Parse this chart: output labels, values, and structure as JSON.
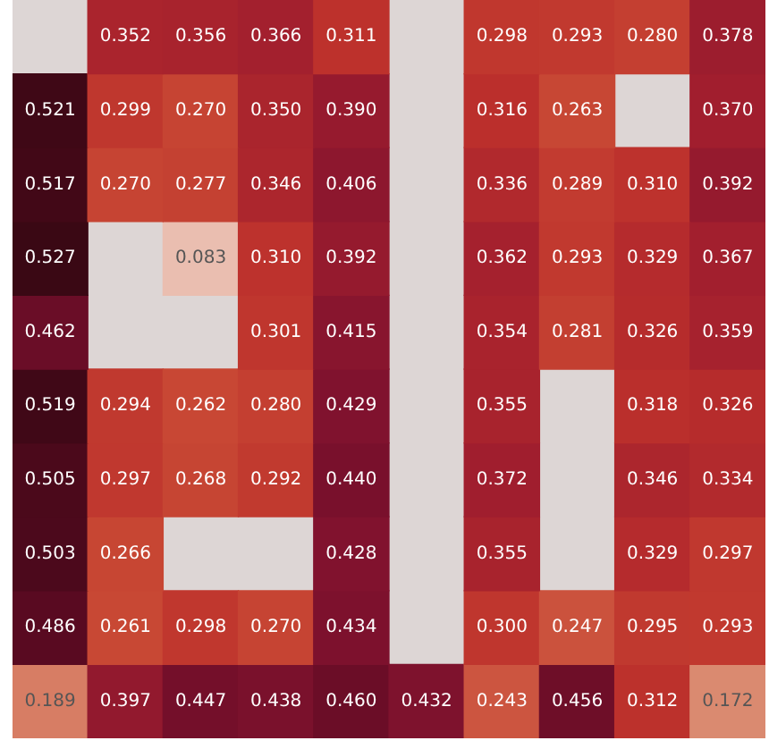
{
  "chart_data": {
    "type": "heatmap",
    "categories": [
      null,
      null,
      null,
      null,
      null,
      null,
      null,
      null,
      null,
      null
    ],
    "y_categories": [
      null,
      null,
      null,
      null,
      null,
      null,
      null,
      null,
      null,
      null
    ],
    "cells": [
      [
        null,
        0.352,
        0.356,
        0.366,
        0.311,
        null,
        0.298,
        0.293,
        0.28,
        0.378
      ],
      [
        0.521,
        0.299,
        0.27,
        0.35,
        0.39,
        null,
        0.316,
        0.263,
        null,
        0.37
      ],
      [
        0.517,
        0.27,
        0.277,
        0.346,
        0.406,
        null,
        0.336,
        0.289,
        0.31,
        0.392
      ],
      [
        0.527,
        null,
        0.083,
        0.31,
        0.392,
        null,
        0.362,
        0.293,
        0.329,
        0.367
      ],
      [
        0.462,
        null,
        null,
        0.301,
        0.415,
        null,
        0.354,
        0.281,
        0.326,
        0.359
      ],
      [
        0.519,
        0.294,
        0.262,
        0.28,
        0.429,
        null,
        0.355,
        null,
        0.318,
        0.326
      ],
      [
        0.505,
        0.297,
        0.268,
        0.292,
        0.44,
        null,
        0.372,
        null,
        0.346,
        0.334
      ],
      [
        0.503,
        0.266,
        null,
        null,
        0.428,
        null,
        0.355,
        null,
        0.329,
        0.297
      ],
      [
        0.486,
        0.261,
        0.298,
        0.27,
        0.434,
        null,
        0.3,
        0.247,
        0.295,
        0.293
      ],
      [
        0.189,
        0.397,
        0.447,
        0.438,
        0.46,
        0.432,
        0.243,
        0.456,
        0.312,
        0.172
      ]
    ],
    "cell_labels": [
      [
        null,
        "0.352",
        "0.356",
        "0.366",
        "0.311",
        null,
        "0.298",
        "0.293",
        "0.280",
        "0.378"
      ],
      [
        "0.521",
        "0.299",
        "0.270",
        "0.350",
        "0.390",
        null,
        "0.316",
        "0.263",
        null,
        "0.370"
      ],
      [
        "0.517",
        "0.270",
        "0.277",
        "0.346",
        "0.406",
        null,
        "0.336",
        "0.289",
        "0.310",
        "0.392"
      ],
      [
        "0.527",
        null,
        "0.083",
        "0.310",
        "0.392",
        null,
        "0.362",
        "0.293",
        "0.329",
        "0.367"
      ],
      [
        "0.462",
        null,
        null,
        "0.301",
        "0.415",
        null,
        "0.354",
        "0.281",
        "0.326",
        "0.359"
      ],
      [
        "0.519",
        "0.294",
        "0.262",
        "0.280",
        "0.429",
        null,
        "0.355",
        null,
        "0.318",
        "0.326"
      ],
      [
        "0.505",
        "0.297",
        "0.268",
        "0.292",
        "0.440",
        null,
        "0.372",
        null,
        "0.346",
        "0.334"
      ],
      [
        "0.503",
        "0.266",
        null,
        null,
        "0.428",
        null,
        "0.355",
        null,
        "0.329",
        "0.297"
      ],
      [
        "0.486",
        "0.261",
        "0.298",
        "0.270",
        "0.434",
        null,
        "0.300",
        "0.247",
        "0.295",
        "0.293"
      ],
      [
        "0.189",
        "0.397",
        "0.447",
        "0.438",
        "0.460",
        "0.432",
        "0.243",
        "0.456",
        "0.312",
        "0.172"
      ]
    ]
  }
}
